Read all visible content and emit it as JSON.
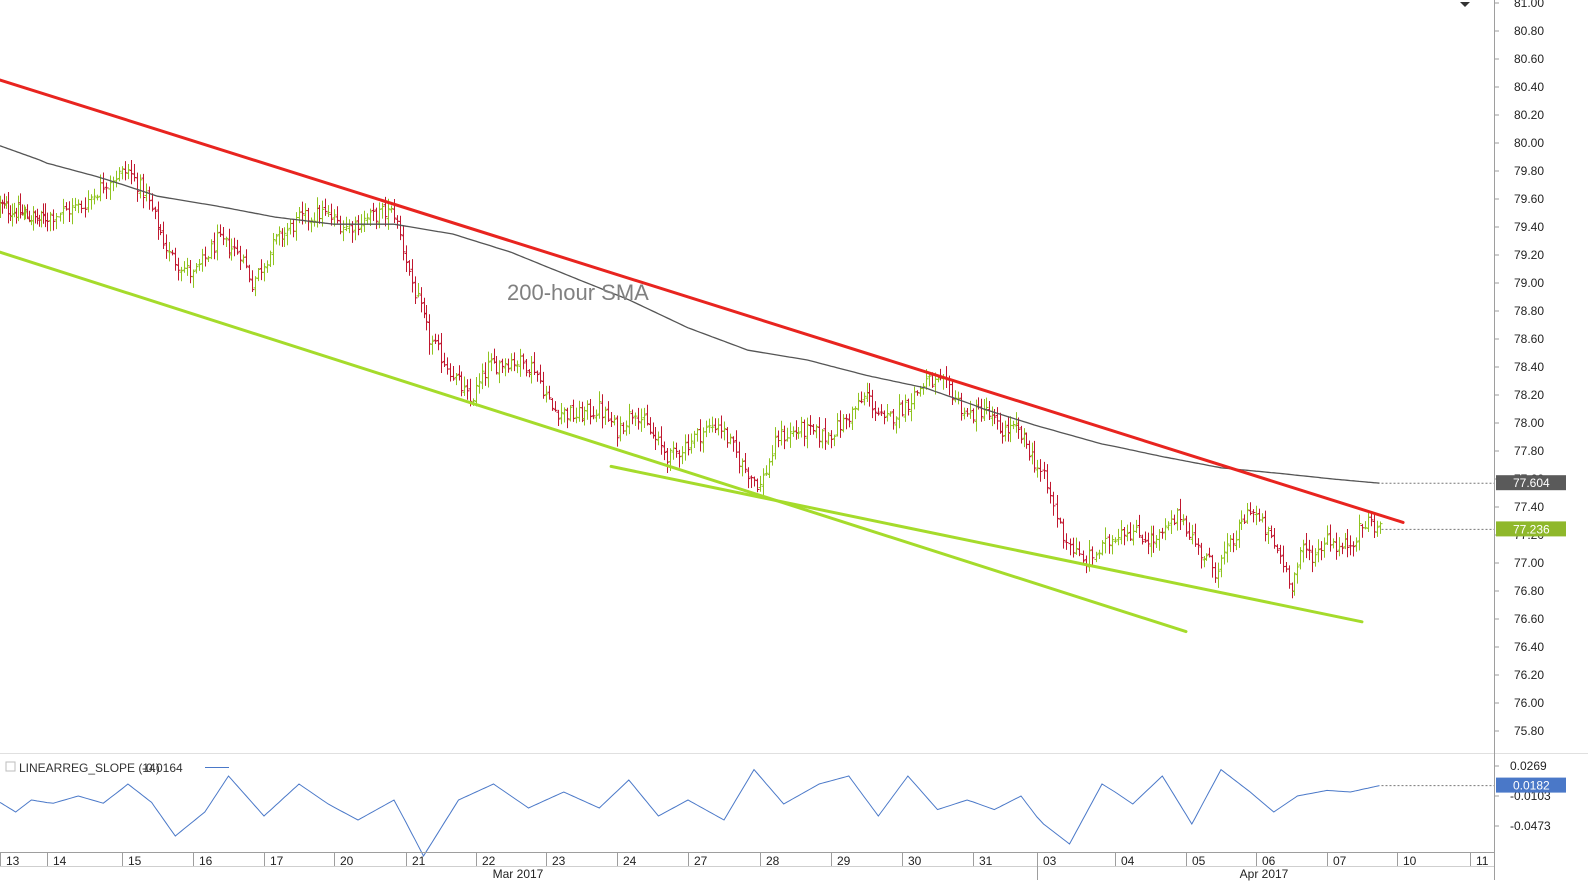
{
  "chart_data": {
    "type": "candlestick",
    "instrument_note": "",
    "y_axis": {
      "min": 75.7,
      "max": 81.0,
      "ticks": [
        "81.00",
        "80.80",
        "80.60",
        "80.40",
        "80.20",
        "80.00",
        "79.80",
        "79.60",
        "79.40",
        "79.20",
        "79.00",
        "78.80",
        "78.60",
        "78.40",
        "78.20",
        "78.00",
        "77.80",
        "77.60",
        "77.40",
        "77.20",
        "77.00",
        "76.80",
        "76.60",
        "76.40",
        "76.20",
        "76.00",
        "75.80"
      ]
    },
    "x_axis": {
      "day_labels": [
        "13",
        "14",
        "15",
        "16",
        "17",
        "20",
        "21",
        "22",
        "23",
        "24",
        "27",
        "28",
        "29",
        "30",
        "31",
        "03",
        "04",
        "05",
        "06",
        "07",
        "10",
        "11"
      ],
      "month_labels": [
        "Mar 2017",
        "Apr 2017"
      ],
      "bars_per_day": 24
    },
    "annotations": {
      "sma_label": "200-hour SMA"
    },
    "price_badges": {
      "sma_value": "77.604",
      "last_price": "77.236"
    },
    "series": {
      "close_anchors": [
        [
          0,
          79.55
        ],
        [
          20,
          79.45
        ],
        [
          35,
          79.55
        ],
        [
          44,
          79.75
        ],
        [
          50,
          79.8
        ],
        [
          56,
          79.62
        ],
        [
          64,
          79.2
        ],
        [
          72,
          79.05
        ],
        [
          80,
          79.3
        ],
        [
          88,
          79.22
        ],
        [
          92,
          79.0
        ],
        [
          100,
          79.3
        ],
        [
          108,
          79.45
        ],
        [
          116,
          79.5
        ],
        [
          124,
          79.4
        ],
        [
          130,
          79.45
        ],
        [
          136,
          79.5
        ],
        [
          140,
          79.5
        ],
        [
          146,
          79.0
        ],
        [
          152,
          78.6
        ],
        [
          160,
          78.35
        ],
        [
          166,
          78.15
        ],
        [
          172,
          78.4
        ],
        [
          180,
          78.45
        ],
        [
          188,
          78.4
        ],
        [
          194,
          78.1
        ],
        [
          202,
          78.05
        ],
        [
          210,
          78.1
        ],
        [
          216,
          77.95
        ],
        [
          222,
          78.1
        ],
        [
          228,
          77.9
        ],
        [
          234,
          77.75
        ],
        [
          242,
          77.9
        ],
        [
          250,
          78.0
        ],
        [
          258,
          77.7
        ],
        [
          264,
          77.55
        ],
        [
          270,
          77.9
        ],
        [
          278,
          77.95
        ],
        [
          286,
          77.9
        ],
        [
          292,
          78.0
        ],
        [
          300,
          78.2
        ],
        [
          306,
          78.0
        ],
        [
          314,
          78.15
        ],
        [
          320,
          78.3
        ],
        [
          328,
          78.25
        ],
        [
          334,
          78.05
        ],
        [
          340,
          78.1
        ],
        [
          346,
          77.95
        ],
        [
          352,
          77.95
        ],
        [
          356,
          77.85
        ],
        [
          362,
          77.6
        ],
        [
          368,
          77.2
        ],
        [
          374,
          77.0
        ],
        [
          380,
          77.1
        ],
        [
          386,
          77.25
        ],
        [
          392,
          77.2
        ],
        [
          398,
          77.15
        ],
        [
          406,
          77.35
        ],
        [
          412,
          77.1
        ],
        [
          418,
          76.95
        ],
        [
          424,
          77.15
        ],
        [
          430,
          77.4
        ],
        [
          436,
          77.2
        ],
        [
          440,
          77.05
        ],
        [
          444,
          76.85
        ],
        [
          448,
          77.1
        ],
        [
          452,
          77.05
        ],
        [
          456,
          77.2
        ],
        [
          460,
          77.1
        ],
        [
          464,
          77.15
        ],
        [
          470,
          77.3
        ],
        [
          474,
          77.24
        ]
      ],
      "sma_anchors": [
        [
          0,
          79.98
        ],
        [
          20,
          79.88
        ],
        [
          40,
          79.76
        ],
        [
          60,
          79.62
        ],
        [
          80,
          79.55
        ],
        [
          100,
          79.47
        ],
        [
          120,
          79.42
        ],
        [
          140,
          79.42
        ],
        [
          160,
          79.35
        ],
        [
          180,
          79.22
        ],
        [
          200,
          79.05
        ],
        [
          220,
          78.88
        ],
        [
          240,
          78.68
        ],
        [
          260,
          78.52
        ],
        [
          280,
          78.45
        ],
        [
          300,
          78.34
        ],
        [
          320,
          78.25
        ],
        [
          340,
          78.1
        ],
        [
          360,
          77.98
        ],
        [
          380,
          77.85
        ],
        [
          400,
          77.76
        ],
        [
          420,
          77.68
        ],
        [
          440,
          77.64
        ],
        [
          458,
          77.6
        ],
        [
          474,
          77.57
        ]
      ],
      "indicator": {
        "name": "LINEARREG_SLOPE (14)",
        "value_text": "-0.0164",
        "axis_ticks": [
          "0.0269",
          "-0.0103",
          "-0.0473"
        ],
        "badge": "0.0182",
        "anchors": [
          [
            0,
            -0.003
          ],
          [
            8,
            -0.015
          ],
          [
            16,
            0.0
          ],
          [
            26,
            -0.004
          ],
          [
            34,
            0.005
          ],
          [
            42,
            -0.004
          ],
          [
            50,
            0.02
          ],
          [
            58,
            -0.003
          ],
          [
            66,
            -0.045
          ],
          [
            76,
            -0.015
          ],
          [
            84,
            0.03
          ],
          [
            96,
            -0.02
          ],
          [
            108,
            0.02
          ],
          [
            118,
            -0.005
          ],
          [
            128,
            -0.025
          ],
          [
            140,
            0.0
          ],
          [
            150,
            -0.07
          ],
          [
            162,
            0.0
          ],
          [
            174,
            0.02
          ],
          [
            186,
            -0.01
          ],
          [
            198,
            0.01
          ],
          [
            210,
            -0.01
          ],
          [
            220,
            0.025
          ],
          [
            230,
            -0.02
          ],
          [
            240,
            0.0
          ],
          [
            252,
            -0.025
          ],
          [
            262,
            0.038
          ],
          [
            272,
            -0.005
          ],
          [
            284,
            0.02
          ],
          [
            294,
            0.03
          ],
          [
            304,
            -0.02
          ],
          [
            314,
            0.03
          ],
          [
            324,
            -0.012
          ],
          [
            334,
            0.0
          ],
          [
            344,
            -0.012
          ],
          [
            354,
            0.005
          ],
          [
            362,
            -0.03
          ],
          [
            370,
            -0.055
          ],
          [
            380,
            0.02
          ],
          [
            390,
            -0.005
          ],
          [
            400,
            0.03
          ],
          [
            410,
            -0.03
          ],
          [
            420,
            0.038
          ],
          [
            430,
            0.01
          ],
          [
            438,
            -0.015
          ],
          [
            446,
            0.005
          ],
          [
            456,
            0.012
          ],
          [
            464,
            0.01
          ],
          [
            474,
            0.018
          ]
        ]
      }
    },
    "trendlines": [
      {
        "name": "resistance",
        "color": "#e8241f",
        "from": [
          0,
          80.45
        ],
        "to": [
          482,
          77.29
        ]
      },
      {
        "name": "support-outer",
        "color": "#a5db2b",
        "from": [
          0,
          79.22
        ],
        "to": [
          408,
          76.51
        ]
      },
      {
        "name": "support-inner",
        "color": "#a5db2b",
        "from": [
          214,
          77.69
        ],
        "to": [
          468,
          76.58
        ]
      }
    ],
    "colors": {
      "up": "#8fc31f",
      "down": "#c0172f",
      "sma": "#555555",
      "indicator": "#4a78c8"
    }
  }
}
